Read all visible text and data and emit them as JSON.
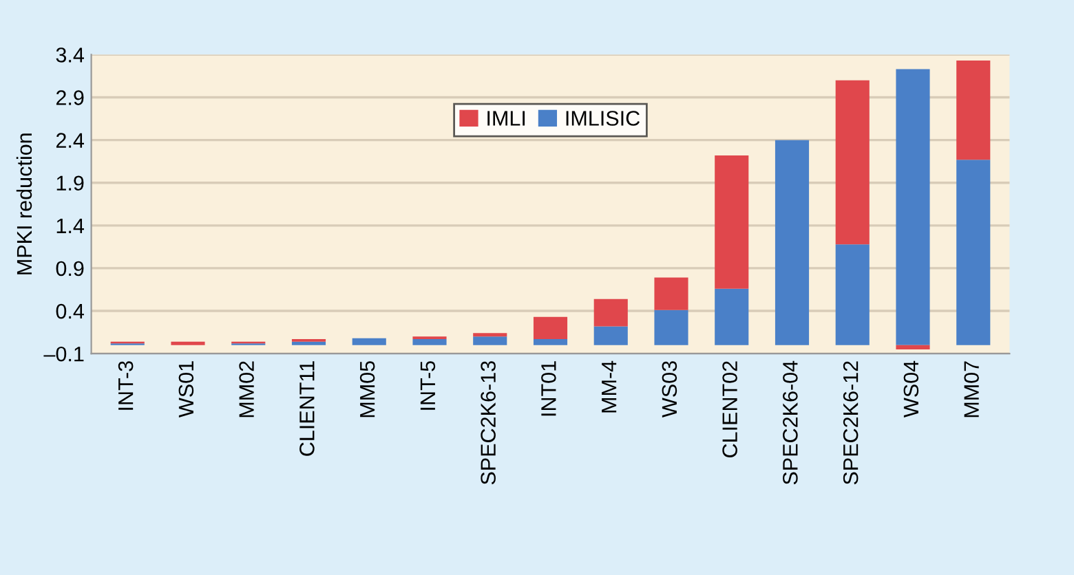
{
  "chart_data": {
    "type": "bar",
    "stacked": true,
    "ylabel": "MPKI reduction",
    "categories": [
      "INT-3",
      "WS01",
      "MM02",
      "CLIENT11",
      "MM05",
      "INT-5",
      "SPEC2K6-13",
      "INT01",
      "MM-4",
      "WS03",
      "CLIENT02",
      "SPEC2K6-04",
      "SPEC2K6-12",
      "WS04",
      "MM07"
    ],
    "series": [
      {
        "name": "IMLISIC",
        "color": "#4a80c8",
        "values": [
          0.02,
          0,
          0.02,
          0.04,
          0.08,
          0.07,
          0.1,
          0.07,
          0.22,
          0.41,
          0.66,
          2.4,
          1.18,
          3.23,
          2.17
        ]
      },
      {
        "name": "IMLI",
        "color": "#e0474c",
        "values": [
          0.02,
          0.04,
          0.02,
          0.03,
          0,
          0.03,
          0.04,
          0.26,
          0.32,
          0.38,
          1.56,
          0,
          1.92,
          -0.05,
          1.16
        ]
      }
    ],
    "ylim": [
      -0.1,
      3.4
    ],
    "yticks": [
      {
        "value": -0.1,
        "label": "–0.1"
      },
      0.4,
      0.9,
      1.4,
      1.9,
      2.4,
      2.9,
      3.4
    ],
    "grid": "y",
    "legend": "top center"
  }
}
